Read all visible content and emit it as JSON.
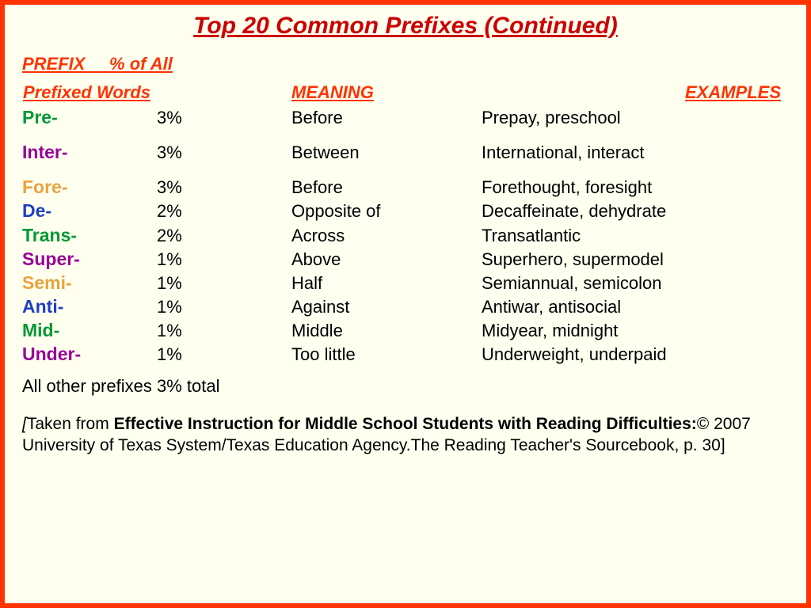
{
  "title": "Top 20 Common Prefixes (Continued)",
  "headers": {
    "line1_prefix": "PREFIX",
    "line1_pct": "% of All",
    "line2_prefixed": "Prefixed Words",
    "line2_meaning": "MEANING",
    "line2_examples": "EXAMPLES"
  },
  "rows": [
    {
      "prefix": "Pre-",
      "color": "#009933",
      "pct": "3%",
      "meaning": "Before",
      "examples": "Prepay, preschool",
      "spaced": true
    },
    {
      "prefix": "Inter-",
      "color": "#990099",
      "pct": "3%",
      "meaning": "Between",
      "examples": "International, interact",
      "spaced": true
    },
    {
      "prefix": "Fore-",
      "color": "#e8a33d",
      "pct": "3%",
      "meaning": "Before",
      "examples": "Forethought, foresight",
      "spaced": false
    },
    {
      "prefix": "De-",
      "color": "#1f3fbf",
      "pct": "2%",
      "meaning": "Opposite of",
      "examples": "Decaffeinate, dehydrate",
      "spaced": false
    },
    {
      "prefix": "Trans-",
      "color": "#009933",
      "pct": "2%",
      "meaning": "Across",
      "examples": "Transatlantic",
      "spaced": false
    },
    {
      "prefix": "Super-",
      "color": "#990099",
      "pct": "1%",
      "meaning": "Above",
      "examples": "Superhero, supermodel",
      "spaced": false
    },
    {
      "prefix": "Semi-",
      "color": "#e8a33d",
      "pct": "1%",
      "meaning": "Half",
      "examples": "Semiannual, semicolon",
      "spaced": false
    },
    {
      "prefix": "Anti-",
      "color": "#1f3fbf",
      "pct": "1%",
      "meaning": "Against",
      "examples": "Antiwar, antisocial",
      "spaced": false
    },
    {
      "prefix": "Mid-",
      "color": "#009933",
      "pct": "1%",
      "meaning": "Middle",
      "examples": "Midyear, midnight",
      "spaced": false
    },
    {
      "prefix": "Under-",
      "color": "#990099",
      "pct": "1%",
      "meaning": "Too little",
      "examples": "Underweight, underpaid",
      "spaced": false
    }
  ],
  "footer_note": "All other prefixes  3% total",
  "citation": {
    "open": "[",
    "lead": "Taken from ",
    "bold": "Effective Instruction for Middle School Students with Reading Difficulties:",
    "rest": "© 2007 University of Texas System/Texas Education Agency.The Reading Teacher's Sourcebook, p. 30]"
  },
  "style": {
    "border_color": "#ff3300",
    "background": "#fffff0",
    "title_color": "#cc0000",
    "header_color": "#ff3300",
    "body_text_color": "#000000",
    "title_fontsize": 30,
    "header_fontsize": 22,
    "row_fontsize": 22,
    "font_family": "Arial"
  }
}
